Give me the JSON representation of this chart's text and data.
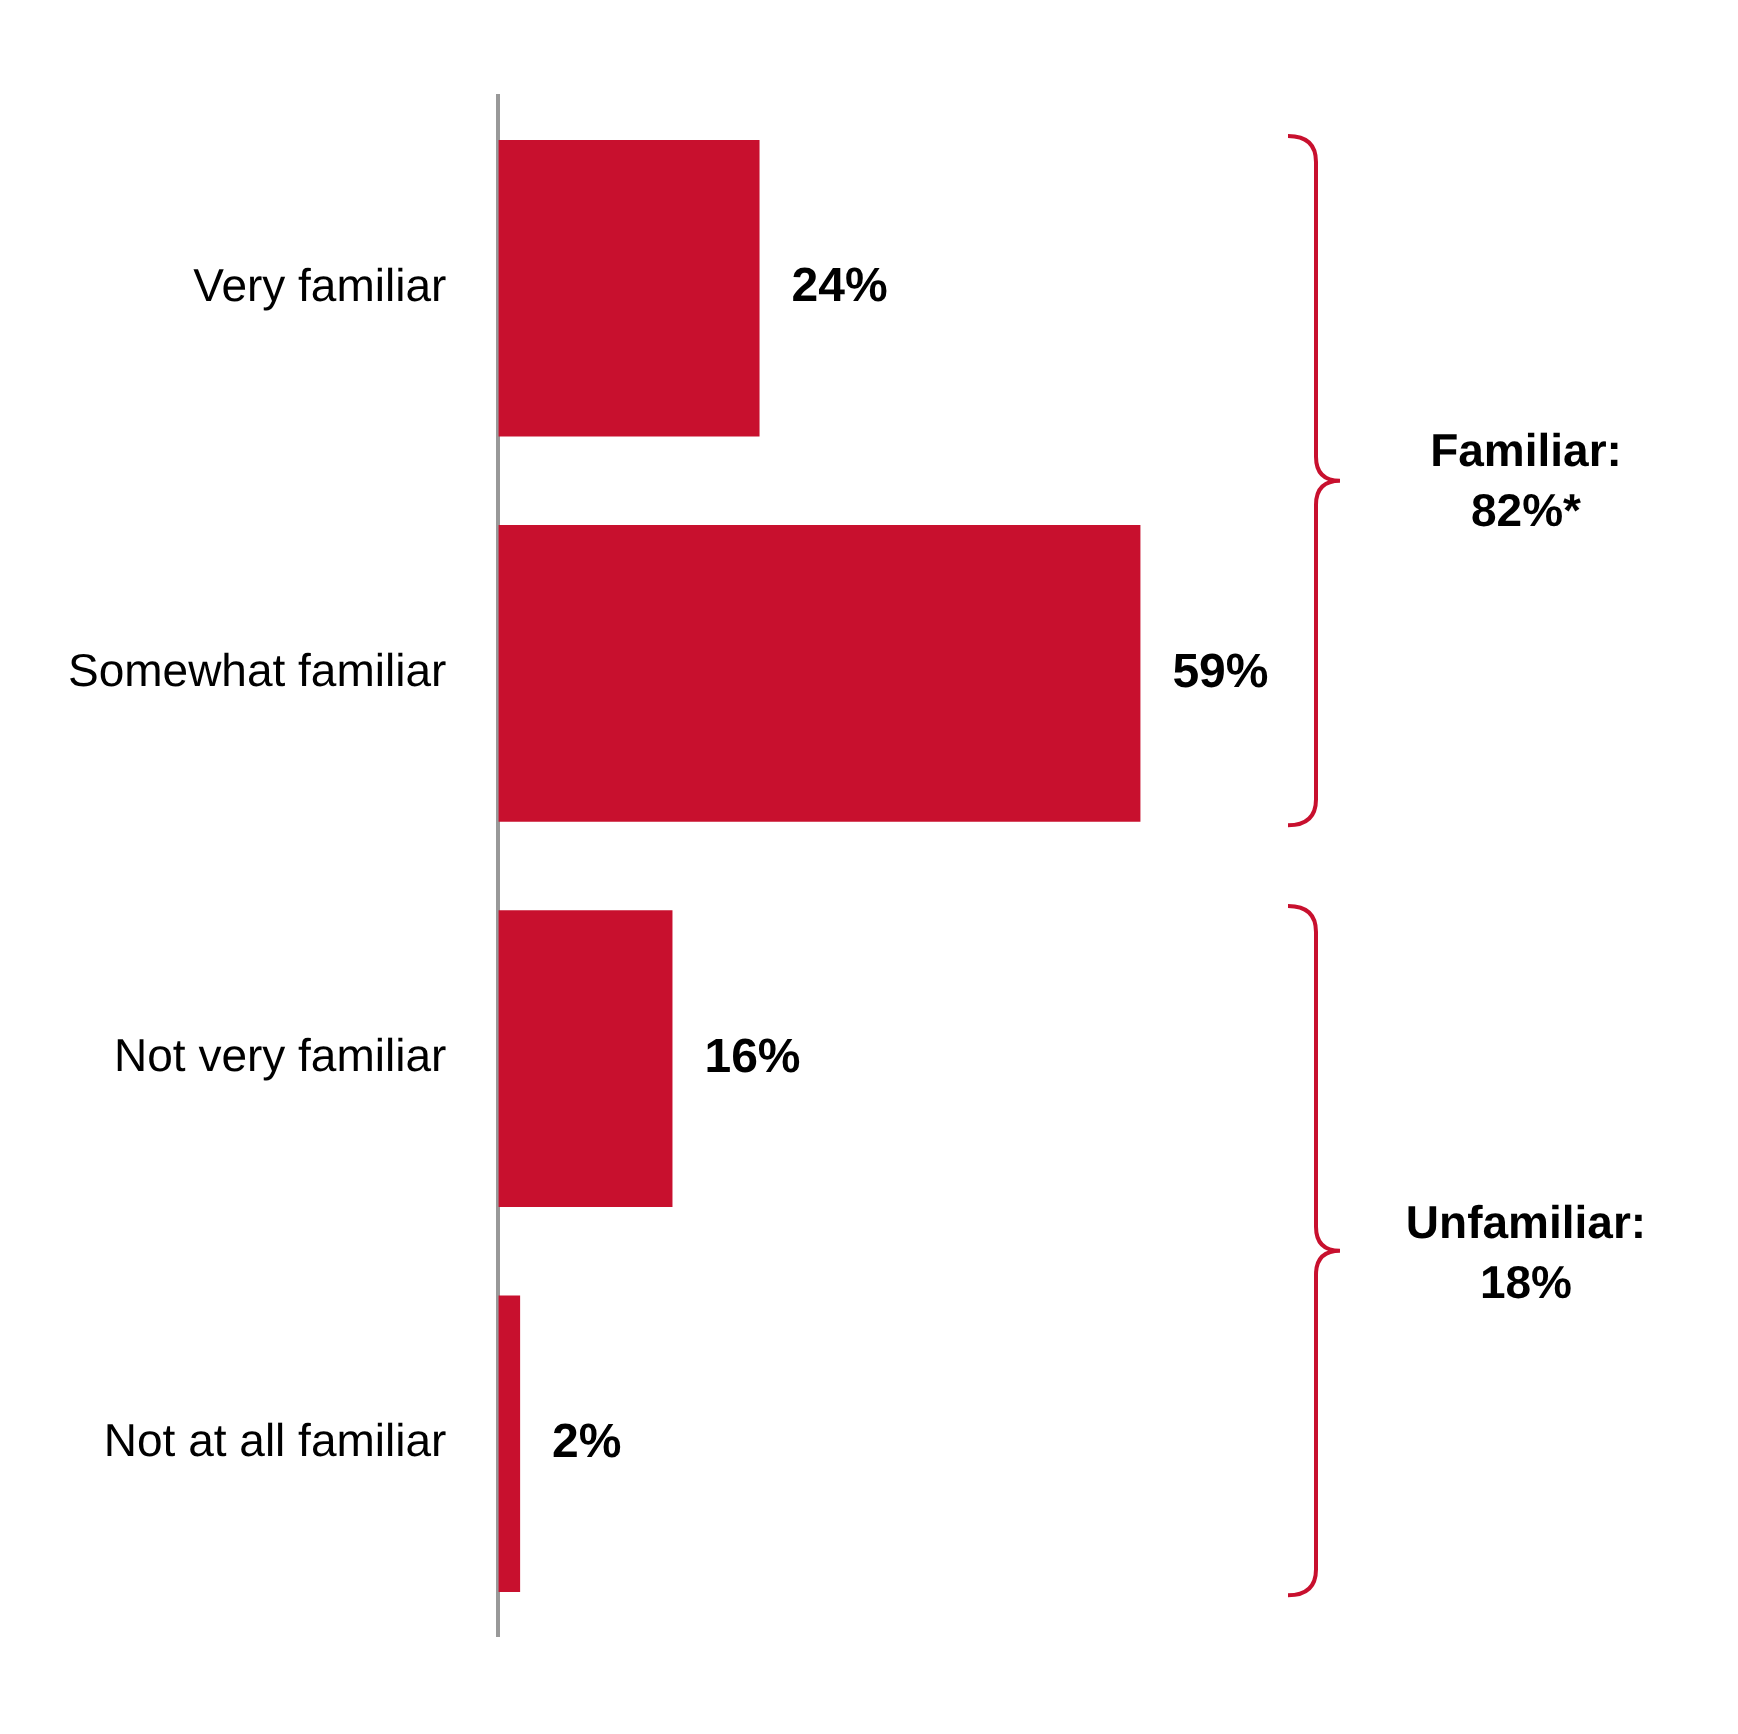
{
  "chart_data": {
    "type": "bar",
    "orientation": "horizontal",
    "categories": [
      "Very familiar",
      "Somewhat familiar",
      "Not very familiar",
      "Not at all familiar"
    ],
    "values": [
      24,
      59,
      16,
      2
    ],
    "value_labels": [
      "24%",
      "59%",
      "16%",
      "2%"
    ],
    "color": "#c8102e",
    "grid": false,
    "legend": false,
    "annotations": [
      "Familiar: 82%*",
      "Unfamiliar: 18%"
    ]
  }
}
